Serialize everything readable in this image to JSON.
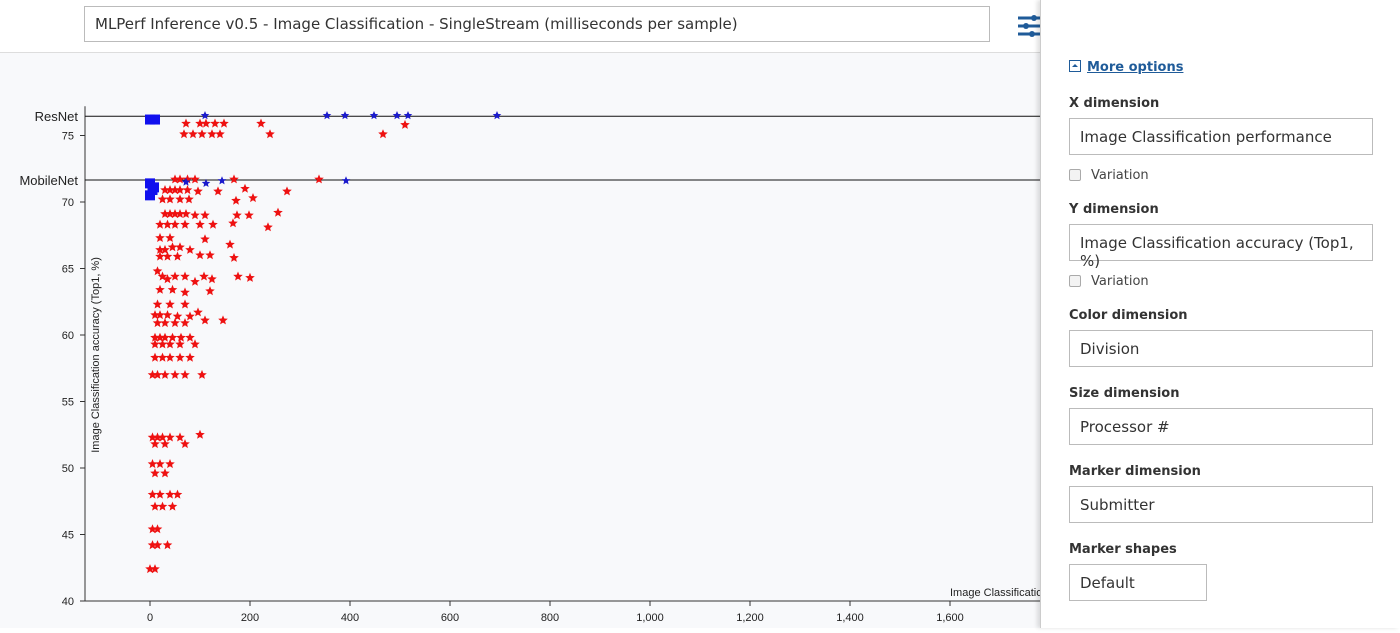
{
  "header": {
    "title": "MLPerf Inference v0.5 - Image Classification - SingleStream (milliseconds per sample)",
    "settings_icon": "sliders-icon"
  },
  "sidebar": {
    "more_options": "More options",
    "x_label": "X dimension",
    "x_value": "Image Classification performance",
    "x_variation": "Variation",
    "y_label": "Y dimension",
    "y_value": "Image Classification accuracy (Top1, %)",
    "y_variation": "Variation",
    "color_label": "Color dimension",
    "color_value": "Division",
    "size_label": "Size dimension",
    "size_value": "Processor #",
    "marker_label": "Marker dimension",
    "marker_value": "Submitter",
    "shapes_label": "Marker shapes",
    "shapes_value": "Default"
  },
  "chart_data": {
    "type": "scatter",
    "xlabel": "Image Classification performance",
    "ylabel": "Image Classification accuracy (Top1, %)",
    "xlim": [
      -130,
      1780
    ],
    "ylim": [
      40,
      77.2
    ],
    "xticks": [
      0,
      200,
      400,
      600,
      800,
      1000,
      1200,
      1400,
      1600
    ],
    "xtick_labels": [
      "0",
      "200",
      "400",
      "600",
      "800",
      "1,000",
      "1,200",
      "1,400",
      "1,600"
    ],
    "yticks": [
      40,
      45,
      50,
      55,
      60,
      65,
      70,
      75
    ],
    "reference_lines": [
      {
        "label": "ResNet",
        "y": 76.45
      },
      {
        "label": "MobileNet",
        "y": 71.65
      }
    ],
    "colors": {
      "red_series": "#ee1111",
      "blue_series": "#1a1acc",
      "blue_squares": "#1010ee"
    },
    "blue_squares": [
      [
        0,
        76.2
      ],
      [
        10,
        76.2
      ],
      [
        0,
        71.4
      ],
      [
        5,
        70.9
      ],
      [
        0,
        70.5
      ],
      [
        8,
        71.1
      ]
    ],
    "blue_stars": [
      [
        110,
        76.5
      ],
      [
        354,
        76.5
      ],
      [
        390,
        76.5
      ],
      [
        448,
        76.5
      ],
      [
        494,
        76.5
      ],
      [
        516,
        76.5
      ],
      [
        694,
        76.5
      ],
      [
        72,
        71.5
      ],
      [
        112,
        71.4
      ],
      [
        144,
        71.6
      ],
      [
        392,
        71.6
      ]
    ],
    "red_stars": [
      [
        72,
        75.9
      ],
      [
        100,
        75.9
      ],
      [
        112,
        75.9
      ],
      [
        130,
        75.9
      ],
      [
        148,
        75.9
      ],
      [
        222,
        75.9
      ],
      [
        510,
        75.8
      ],
      [
        68,
        75.1
      ],
      [
        86,
        75.1
      ],
      [
        104,
        75.1
      ],
      [
        124,
        75.1
      ],
      [
        140,
        75.1
      ],
      [
        240,
        75.1
      ],
      [
        466,
        75.1
      ],
      [
        50,
        71.7
      ],
      [
        60,
        71.7
      ],
      [
        75,
        71.7
      ],
      [
        90,
        71.7
      ],
      [
        168,
        71.7
      ],
      [
        338,
        71.7
      ],
      [
        30,
        70.9
      ],
      [
        40,
        70.9
      ],
      [
        50,
        70.9
      ],
      [
        60,
        70.9
      ],
      [
        75,
        70.9
      ],
      [
        96,
        70.8
      ],
      [
        136,
        70.8
      ],
      [
        190,
        71.0
      ],
      [
        274,
        70.8
      ],
      [
        25,
        70.2
      ],
      [
        40,
        70.2
      ],
      [
        60,
        70.2
      ],
      [
        78,
        70.2
      ],
      [
        172,
        70.1
      ],
      [
        206,
        70.3
      ],
      [
        30,
        69.1
      ],
      [
        40,
        69.1
      ],
      [
        50,
        69.1
      ],
      [
        60,
        69.1
      ],
      [
        72,
        69.1
      ],
      [
        90,
        69.0
      ],
      [
        110,
        69.0
      ],
      [
        174,
        69.0
      ],
      [
        198,
        69.0
      ],
      [
        256,
        69.2
      ],
      [
        20,
        68.3
      ],
      [
        35,
        68.3
      ],
      [
        50,
        68.3
      ],
      [
        70,
        68.3
      ],
      [
        100,
        68.3
      ],
      [
        126,
        68.3
      ],
      [
        166,
        68.4
      ],
      [
        236,
        68.1
      ],
      [
        20,
        67.3
      ],
      [
        40,
        67.3
      ],
      [
        110,
        67.2
      ],
      [
        160,
        66.8
      ],
      [
        20,
        66.4
      ],
      [
        30,
        66.4
      ],
      [
        45,
        66.6
      ],
      [
        60,
        66.6
      ],
      [
        80,
        66.4
      ],
      [
        100,
        66.0
      ],
      [
        120,
        66.0
      ],
      [
        168,
        65.8
      ],
      [
        20,
        65.9
      ],
      [
        35,
        65.9
      ],
      [
        55,
        65.9
      ],
      [
        15,
        64.8
      ],
      [
        25,
        64.4
      ],
      [
        35,
        64.2
      ],
      [
        50,
        64.4
      ],
      [
        70,
        64.4
      ],
      [
        90,
        64.0
      ],
      [
        108,
        64.4
      ],
      [
        124,
        64.2
      ],
      [
        176,
        64.4
      ],
      [
        200,
        64.3
      ],
      [
        20,
        63.4
      ],
      [
        45,
        63.4
      ],
      [
        70,
        63.2
      ],
      [
        120,
        63.3
      ],
      [
        15,
        62.3
      ],
      [
        40,
        62.3
      ],
      [
        70,
        62.3
      ],
      [
        10,
        61.5
      ],
      [
        20,
        61.5
      ],
      [
        35,
        61.5
      ],
      [
        55,
        61.4
      ],
      [
        80,
        61.4
      ],
      [
        96,
        61.7
      ],
      [
        110,
        61.1
      ],
      [
        146,
        61.1
      ],
      [
        15,
        60.9
      ],
      [
        30,
        60.9
      ],
      [
        50,
        60.9
      ],
      [
        70,
        60.9
      ],
      [
        10,
        59.8
      ],
      [
        20,
        59.8
      ],
      [
        30,
        59.8
      ],
      [
        45,
        59.8
      ],
      [
        62,
        59.8
      ],
      [
        80,
        59.8
      ],
      [
        10,
        59.3
      ],
      [
        25,
        59.3
      ],
      [
        40,
        59.3
      ],
      [
        60,
        59.3
      ],
      [
        90,
        59.3
      ],
      [
        10,
        58.3
      ],
      [
        25,
        58.3
      ],
      [
        40,
        58.3
      ],
      [
        60,
        58.3
      ],
      [
        80,
        58.3
      ],
      [
        5,
        57.0
      ],
      [
        15,
        57.0
      ],
      [
        30,
        57.0
      ],
      [
        50,
        57.0
      ],
      [
        70,
        57.0
      ],
      [
        104,
        57.0
      ],
      [
        5,
        52.3
      ],
      [
        15,
        52.3
      ],
      [
        25,
        52.3
      ],
      [
        40,
        52.3
      ],
      [
        60,
        52.3
      ],
      [
        100,
        52.5
      ],
      [
        10,
        51.8
      ],
      [
        30,
        51.8
      ],
      [
        70,
        51.8
      ],
      [
        5,
        50.3
      ],
      [
        20,
        50.3
      ],
      [
        40,
        50.3
      ],
      [
        10,
        49.6
      ],
      [
        30,
        49.6
      ],
      [
        5,
        48.0
      ],
      [
        20,
        48.0
      ],
      [
        40,
        48.0
      ],
      [
        55,
        48.0
      ],
      [
        10,
        47.1
      ],
      [
        25,
        47.1
      ],
      [
        45,
        47.1
      ],
      [
        5,
        45.4
      ],
      [
        15,
        45.4
      ],
      [
        5,
        44.2
      ],
      [
        15,
        44.2
      ],
      [
        35,
        44.2
      ],
      [
        0,
        42.4
      ],
      [
        10,
        42.4
      ]
    ]
  }
}
